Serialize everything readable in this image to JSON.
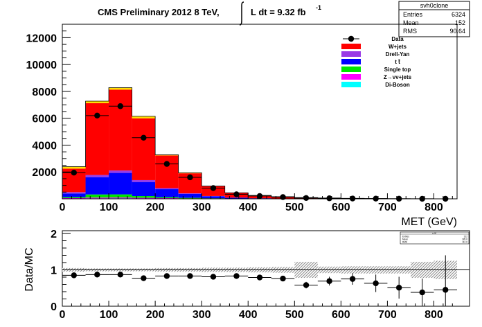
{
  "title": {
    "prefix": "CMS Preliminary 2012 8 TeV,",
    "lumi_text": "L dt = 9.32 fb",
    "lumi_exp": "-1"
  },
  "stats_box": {
    "name": "svh0clone",
    "rows": [
      {
        "label": "Entries",
        "value": "6324"
      },
      {
        "label": "Mean",
        "value": "152"
      },
      {
        "label": "RMS",
        "value": "90.64"
      }
    ]
  },
  "small_stats_box": {
    "name": "svh0",
    "rows": [
      {
        "label": "Entries",
        "value": "312"
      },
      {
        "label": "Mean",
        "value": "185.6"
      },
      {
        "label": "RMS",
        "value": "112.6"
      }
    ]
  },
  "colors": {
    "wjets": "#ff0000",
    "drellyan": "#9a3ae6",
    "ttbar": "#0000ff",
    "singletop": "#00e600",
    "zvv": "#ff00ff",
    "diboson": "#00ffff",
    "topband": "#ffe000",
    "data": "#000000"
  },
  "chart_data": [
    {
      "type": "bar",
      "stacked": true,
      "title": "CMS Preliminary 2012 8 TeV, L dt = 9.32 fb-1",
      "xlabel": "MET (GeV)",
      "ylabel": "",
      "xlim": [
        0,
        850
      ],
      "ylim": [
        0,
        13000
      ],
      "xticks": [
        0,
        100,
        200,
        300,
        400,
        500,
        600,
        700,
        800
      ],
      "yticks": [
        2000,
        4000,
        6000,
        8000,
        10000,
        12000
      ],
      "bin_edges": [
        0,
        50,
        100,
        150,
        200,
        250,
        300,
        350,
        400,
        450,
        500,
        550,
        600,
        650,
        700,
        750,
        800,
        850
      ],
      "legend_position": "top-right",
      "series": [
        {
          "name": "Di-Boson",
          "color_key": "diboson",
          "values": [
            20,
            35,
            40,
            30,
            20,
            12,
            8,
            5,
            3,
            2,
            1,
            1,
            0,
            0,
            0,
            0,
            0
          ]
        },
        {
          "name": "Z→νν+jets",
          "color_key": "zvv",
          "values": [
            40,
            60,
            60,
            45,
            30,
            20,
            12,
            8,
            5,
            3,
            2,
            1,
            1,
            0,
            0,
            0,
            0
          ]
        },
        {
          "name": "Single top",
          "color_key": "singletop",
          "values": [
            70,
            230,
            230,
            130,
            70,
            40,
            20,
            10,
            5,
            3,
            2,
            1,
            1,
            0,
            0,
            0,
            0
          ]
        },
        {
          "name": "t t̄",
          "color_key": "ttbar",
          "values": [
            270,
            1290,
            1600,
            1050,
            600,
            300,
            150,
            60,
            30,
            15,
            10,
            5,
            3,
            2,
            1,
            1,
            0
          ]
        },
        {
          "name": "Drell-Yan",
          "color_key": "drellyan",
          "values": [
            100,
            160,
            180,
            140,
            80,
            40,
            20,
            10,
            5,
            3,
            2,
            1,
            1,
            0,
            0,
            0,
            0
          ]
        },
        {
          "name": "W+jets",
          "color_key": "wjets",
          "values": [
            1750,
            5350,
            6020,
            4600,
            2430,
            1490,
            720,
            350,
            205,
            130,
            78,
            50,
            30,
            20,
            12,
            8,
            6
          ]
        }
      ],
      "topband_values": [
        150,
        150,
        150,
        150,
        50,
        40,
        20,
        10,
        5,
        3,
        2,
        1,
        1,
        0,
        0,
        0,
        0
      ],
      "data_series": {
        "name": "Data",
        "x": [
          25,
          75,
          125,
          175,
          225,
          275,
          325,
          375,
          425,
          475,
          525,
          575,
          625,
          675,
          725,
          775,
          825
        ],
        "y": [
          1950,
          6200,
          6900,
          4550,
          2600,
          1600,
          800,
          340,
          210,
          130,
          60,
          40,
          25,
          15,
          8,
          3,
          3
        ]
      },
      "legend": [
        {
          "label": "Data",
          "kind": "marker",
          "color_key": "data"
        },
        {
          "label": "W+jets",
          "kind": "box",
          "color_key": "wjets"
        },
        {
          "label": "Drell-Yan",
          "kind": "box",
          "color_key": "drellyan"
        },
        {
          "label": "t t̄",
          "kind": "box",
          "color_key": "ttbar"
        },
        {
          "label": "Single top",
          "kind": "box",
          "color_key": "singletop"
        },
        {
          "label": "Z→νν+jets",
          "kind": "box",
          "color_key": "zvv"
        },
        {
          "label": "Di-Boson",
          "kind": "box",
          "color_key": "diboson"
        }
      ]
    },
    {
      "type": "scatter",
      "title": "",
      "xlabel": "",
      "ylabel": "Data/MC",
      "xlim": [
        0,
        850
      ],
      "ylim": [
        0,
        2
      ],
      "xticks": [
        0,
        100,
        200,
        300,
        400,
        500,
        600,
        700,
        800
      ],
      "yticks": [
        0,
        1,
        2
      ],
      "reference_line": 1,
      "x": [
        25,
        75,
        125,
        175,
        225,
        275,
        325,
        375,
        425,
        475,
        525,
        575,
        625,
        675,
        725,
        775,
        825
      ],
      "y": [
        0.85,
        0.87,
        0.87,
        0.77,
        0.83,
        0.83,
        0.81,
        0.83,
        0.79,
        0.76,
        0.58,
        0.69,
        0.75,
        0.63,
        0.51,
        0.38,
        0.45
      ],
      "yerr": [
        0.02,
        0.02,
        0.02,
        0.02,
        0.02,
        0.03,
        0.04,
        0.05,
        0.06,
        0.07,
        0.09,
        0.12,
        0.16,
        0.24,
        0.3,
        0.38,
        0.95
      ],
      "mc_uncertainty": [
        0.05,
        0.04,
        0.04,
        0.04,
        0.05,
        0.05,
        0.06,
        0.06,
        0.07,
        0.08,
        0.22,
        0.09,
        0.1,
        0.1,
        0.1,
        0.22,
        0.25
      ]
    }
  ]
}
